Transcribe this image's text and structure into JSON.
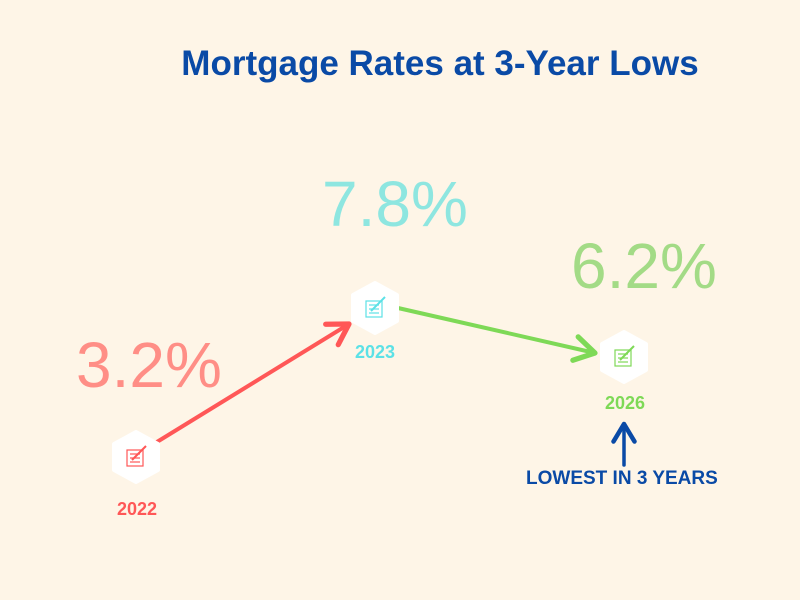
{
  "title": "Mortgage Rates at 3-Year Lows",
  "points": [
    {
      "year": "2022",
      "rate": "3.2%",
      "color": "#ff5757",
      "value_color": "#ff8e86",
      "icon": "document-edit-icon"
    },
    {
      "year": "2023",
      "rate": "7.8%",
      "color": "#5ce1e6",
      "value_color": "#8ee6e0",
      "icon": "document-edit-icon"
    },
    {
      "year": "2026",
      "rate": "6.2%",
      "color": "#7ed957",
      "value_color": "#a3db86",
      "icon": "document-edit-icon"
    }
  ],
  "annotation": {
    "text": "LOWEST IN 3 YEARS",
    "color": "#0a4aa6"
  }
}
